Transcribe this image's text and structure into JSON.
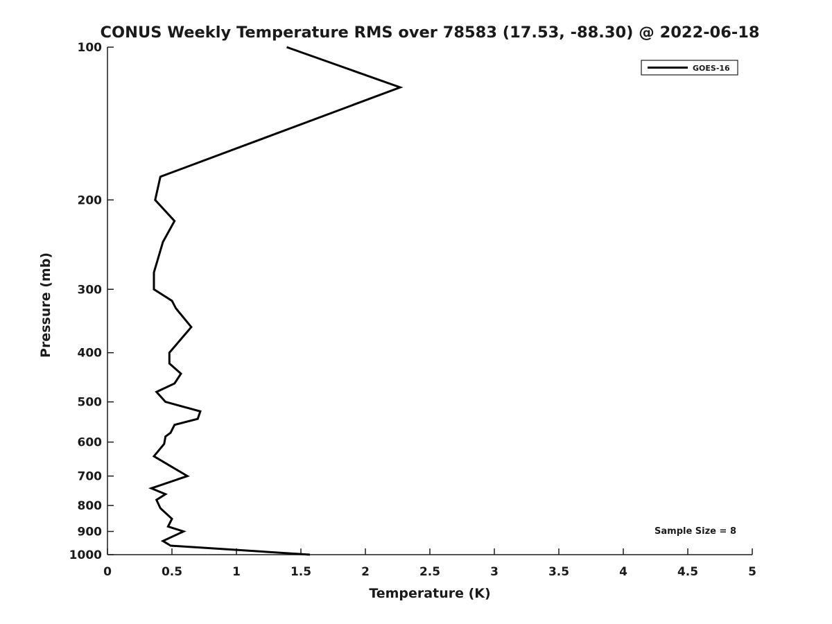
{
  "chart_data": {
    "type": "line",
    "title": "CONUS Weekly Temperature RMS over 78583 (17.53, -88.30) @ 2022-06-18",
    "xlabel": "Temperature (K)",
    "ylabel": "Pressure (mb)",
    "xlim": [
      0,
      5
    ],
    "ylim": [
      100,
      1000
    ],
    "yscale": "log",
    "y_axis_inverted": true,
    "grid": false,
    "xticks": [
      0,
      0.5,
      1,
      1.5,
      2,
      2.5,
      3,
      3.5,
      4,
      4.5,
      5
    ],
    "xtick_labels": [
      "0",
      "0.5",
      "1",
      "1.5",
      "2",
      "2.5",
      "3",
      "3.5",
      "4",
      "4.5",
      "5"
    ],
    "yticks": [
      100,
      200,
      300,
      400,
      500,
      600,
      700,
      800,
      900,
      1000
    ],
    "ytick_labels": [
      "100",
      "200",
      "300",
      "400",
      "500",
      "600",
      "700",
      "800",
      "900",
      "1000"
    ],
    "legend": {
      "position": "top-right",
      "entries": [
        {
          "label": "GOES-16",
          "color": "#000000",
          "line_width": 3
        }
      ]
    },
    "annotation": "Sample Size = 8",
    "series": [
      {
        "name": "GOES-16",
        "color": "#000000",
        "points_format": "[temperature_rms_K, pressure_mb]",
        "points": [
          [
            1.39,
            100
          ],
          [
            2.27,
            120
          ],
          [
            0.41,
            180
          ],
          [
            0.37,
            200
          ],
          [
            0.52,
            220
          ],
          [
            0.43,
            242
          ],
          [
            0.36,
            278
          ],
          [
            0.36,
            300
          ],
          [
            0.5,
            316
          ],
          [
            0.53,
            327
          ],
          [
            0.65,
            356
          ],
          [
            0.48,
            400
          ],
          [
            0.48,
            420
          ],
          [
            0.57,
            440
          ],
          [
            0.52,
            460
          ],
          [
            0.38,
            478
          ],
          [
            0.45,
            500
          ],
          [
            0.72,
            522
          ],
          [
            0.7,
            540
          ],
          [
            0.52,
            555
          ],
          [
            0.49,
            575
          ],
          [
            0.45,
            585
          ],
          [
            0.44,
            605
          ],
          [
            0.36,
            640
          ],
          [
            0.62,
            700
          ],
          [
            0.34,
            740
          ],
          [
            0.45,
            760
          ],
          [
            0.38,
            780
          ],
          [
            0.41,
            810
          ],
          [
            0.5,
            850
          ],
          [
            0.47,
            880
          ],
          [
            0.59,
            900
          ],
          [
            0.43,
            940
          ],
          [
            0.49,
            960
          ],
          [
            1.57,
            1000
          ]
        ]
      }
    ]
  },
  "colors": {
    "background": "#ffffff",
    "axis": "#1a1a1a",
    "text": "#1a1a1a",
    "series": "#000000"
  }
}
